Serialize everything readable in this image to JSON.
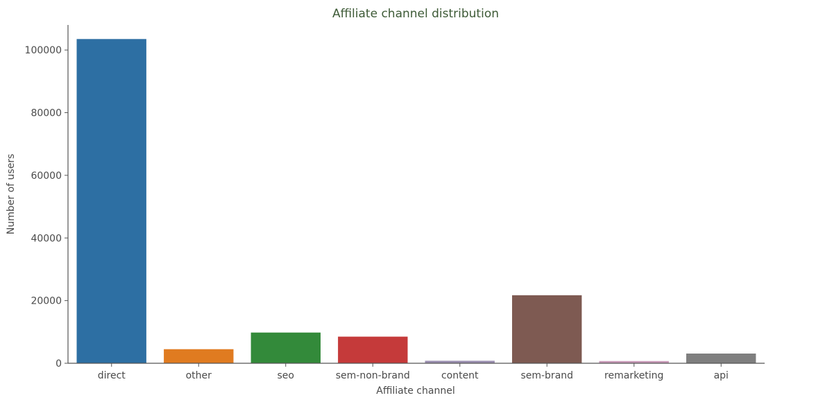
{
  "chart_data": {
    "type": "bar",
    "title": "Affiliate channel distribution",
    "xlabel": "Affiliate channel",
    "ylabel": "Number of users",
    "categories": [
      "direct",
      "other",
      "seo",
      "sem-non-brand",
      "content",
      "sem-brand",
      "remarketing",
      "api"
    ],
    "values": [
      103500,
      4500,
      9800,
      8500,
      800,
      21700,
      700,
      3100
    ],
    "ylim": [
      0,
      108000
    ],
    "yticks": [
      0,
      20000,
      40000,
      60000,
      80000,
      100000
    ],
    "colors": [
      "#2d6fa3",
      "#e07b20",
      "#338a3a",
      "#c53a3a",
      "#9b8fb0",
      "#7e5a52",
      "#c99ab8",
      "#7f7f7f"
    ],
    "grid": false,
    "legend": "none"
  }
}
